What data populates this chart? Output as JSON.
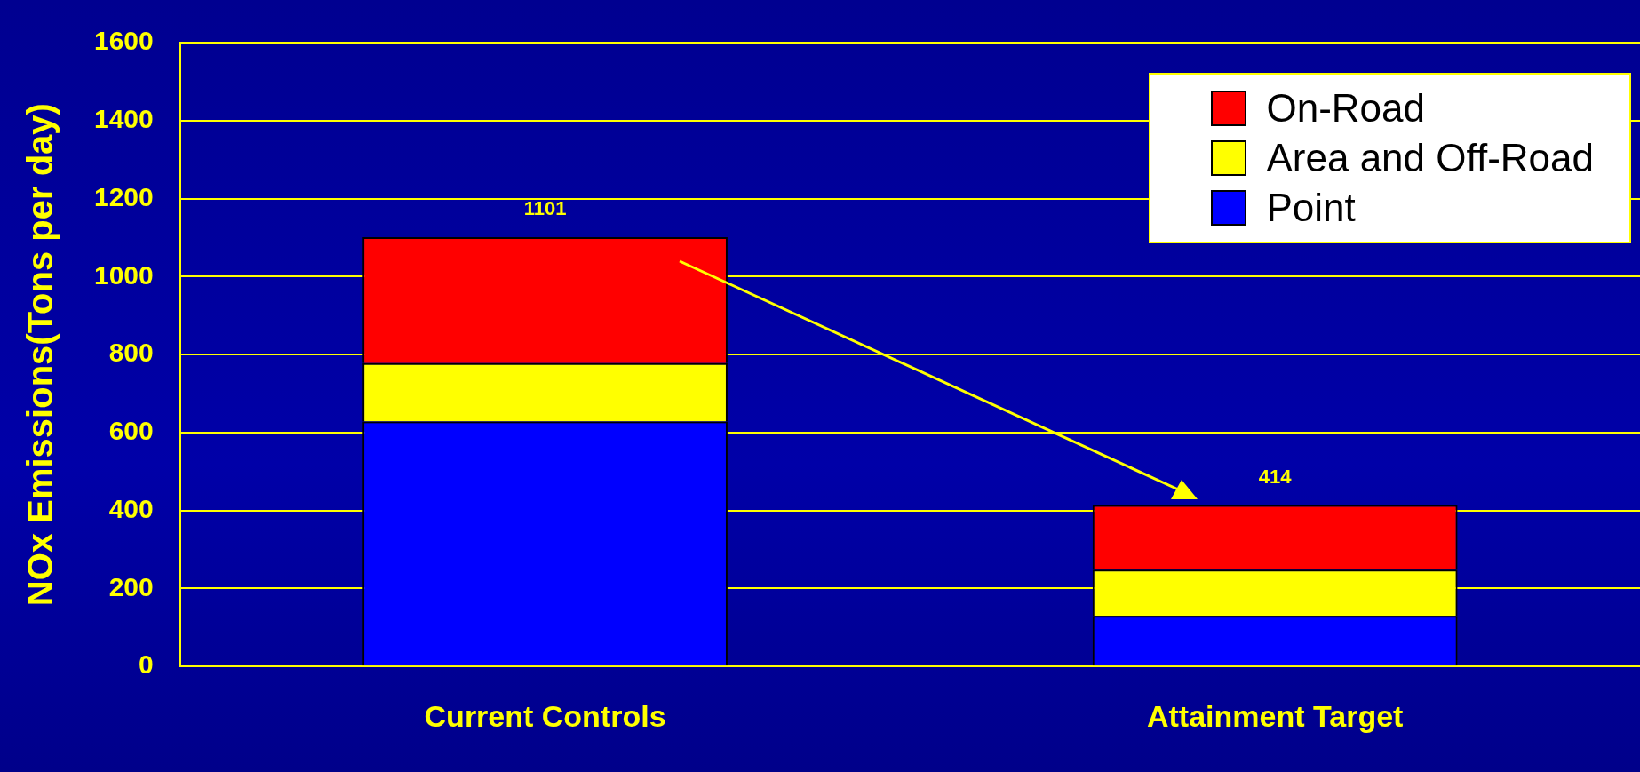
{
  "chart_data": {
    "type": "bar",
    "ylabel": "NOx Emissions(Tons per day)",
    "categories": [
      "Current Controls",
      "Attainment Target"
    ],
    "stacked": true,
    "series": [
      {
        "name": "Point",
        "color": "#0000ff",
        "values": [
          628,
          130
        ]
      },
      {
        "name": "Area and Off-Road",
        "color": "#ffff00",
        "values": [
          150,
          118
        ]
      },
      {
        "name": "On-Road",
        "color": "#ff0000",
        "values": [
          323,
          166
        ]
      }
    ],
    "ylim": [
      0,
      1600
    ],
    "yticks": [
      0,
      200,
      400,
      600,
      800,
      1000,
      1200,
      1400,
      1600
    ],
    "grid": "y",
    "legend": "top right",
    "totals": [
      "1101",
      "414"
    ]
  }
}
